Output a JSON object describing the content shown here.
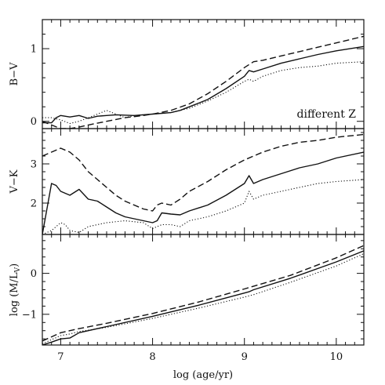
{
  "chart_data": [
    {
      "type": "line",
      "ylabel": "B−V",
      "xlim": [
        6.8,
        10.3
      ],
      "ylim": [
        -0.1,
        1.4
      ],
      "yticks": [
        0,
        1
      ],
      "yminor": [
        0.2,
        0.4,
        0.6,
        0.8,
        1.2
      ],
      "annotation": "different Z",
      "series": [
        {
          "style": "solid",
          "color": "#111111",
          "x": [
            6.8,
            6.9,
            6.95,
            7.0,
            7.1,
            7.2,
            7.3,
            7.4,
            7.5,
            7.6,
            7.8,
            8.0,
            8.2,
            8.3,
            8.4,
            8.6,
            8.8,
            9.0,
            9.05,
            9.1,
            9.2,
            9.4,
            9.6,
            9.8,
            10.0,
            10.3
          ],
          "y": [
            -0.02,
            -0.02,
            0.05,
            0.08,
            0.06,
            0.08,
            0.04,
            0.07,
            0.08,
            0.09,
            0.08,
            0.1,
            0.12,
            0.15,
            0.2,
            0.3,
            0.45,
            0.62,
            0.7,
            0.68,
            0.72,
            0.8,
            0.86,
            0.92,
            0.97,
            1.03
          ]
        },
        {
          "style": "dashed",
          "color": "#111111",
          "x": [
            6.8,
            6.9,
            7.0,
            7.1,
            7.2,
            7.3,
            7.5,
            7.7,
            7.9,
            8.0,
            8.2,
            8.4,
            8.6,
            8.8,
            9.0,
            9.1,
            9.2,
            9.4,
            9.6,
            9.8,
            10.0,
            10.3
          ],
          "y": [
            0.0,
            -0.05,
            -0.1,
            -0.1,
            -0.08,
            -0.05,
            0.0,
            0.05,
            0.08,
            0.1,
            0.15,
            0.24,
            0.38,
            0.55,
            0.74,
            0.82,
            0.84,
            0.9,
            0.96,
            1.02,
            1.08,
            1.17
          ]
        },
        {
          "style": "dotted",
          "color": "#111111",
          "x": [
            6.8,
            6.9,
            7.0,
            7.1,
            7.2,
            7.3,
            7.4,
            7.5,
            7.6,
            7.7,
            7.8,
            8.0,
            8.2,
            8.4,
            8.6,
            8.8,
            9.0,
            9.05,
            9.1,
            9.2,
            9.4,
            9.6,
            9.8,
            10.0,
            10.3
          ],
          "y": [
            0.05,
            0.05,
            0.02,
            -0.03,
            0.0,
            0.05,
            0.1,
            0.15,
            0.1,
            0.05,
            0.08,
            0.1,
            0.12,
            0.18,
            0.28,
            0.4,
            0.55,
            0.58,
            0.55,
            0.62,
            0.7,
            0.74,
            0.76,
            0.8,
            0.82
          ]
        }
      ]
    },
    {
      "type": "line",
      "ylabel": "V−K",
      "xlim": [
        6.8,
        10.3
      ],
      "ylim": [
        1.2,
        3.9
      ],
      "yticks": [
        2,
        3
      ],
      "yminor": [
        1.4,
        1.6,
        1.8,
        2.2,
        2.4,
        2.6,
        2.8,
        3.2,
        3.4,
        3.6,
        3.8
      ],
      "series": [
        {
          "style": "solid",
          "color": "#111111",
          "x": [
            6.8,
            6.9,
            6.95,
            7.0,
            7.1,
            7.2,
            7.3,
            7.4,
            7.5,
            7.6,
            7.7,
            7.8,
            7.9,
            8.0,
            8.05,
            8.1,
            8.2,
            8.3,
            8.4,
            8.6,
            8.8,
            9.0,
            9.05,
            9.1,
            9.2,
            9.4,
            9.6,
            9.8,
            10.0,
            10.3
          ],
          "y": [
            1.2,
            2.5,
            2.45,
            2.3,
            2.2,
            2.35,
            2.1,
            2.05,
            1.9,
            1.75,
            1.65,
            1.6,
            1.55,
            1.5,
            1.55,
            1.75,
            1.72,
            1.7,
            1.8,
            1.95,
            2.2,
            2.5,
            2.7,
            2.5,
            2.6,
            2.75,
            2.9,
            3.0,
            3.15,
            3.3
          ]
        },
        {
          "style": "dashed",
          "color": "#111111",
          "x": [
            6.8,
            6.9,
            7.0,
            7.1,
            7.2,
            7.3,
            7.4,
            7.5,
            7.6,
            7.7,
            7.8,
            7.9,
            8.0,
            8.05,
            8.1,
            8.2,
            8.3,
            8.4,
            8.6,
            8.8,
            9.0,
            9.1,
            9.2,
            9.4,
            9.6,
            9.8,
            10.0,
            10.3
          ],
          "y": [
            3.2,
            3.3,
            3.4,
            3.3,
            3.1,
            2.8,
            2.6,
            2.4,
            2.2,
            2.05,
            1.95,
            1.85,
            1.8,
            1.95,
            2.0,
            1.95,
            2.1,
            2.3,
            2.55,
            2.85,
            3.1,
            3.2,
            3.3,
            3.45,
            3.55,
            3.6,
            3.68,
            3.75
          ]
        },
        {
          "style": "dotted",
          "color": "#111111",
          "x": [
            6.8,
            6.9,
            7.0,
            7.05,
            7.1,
            7.2,
            7.3,
            7.5,
            7.7,
            7.9,
            8.0,
            8.05,
            8.1,
            8.2,
            8.3,
            8.4,
            8.6,
            8.8,
            9.0,
            9.05,
            9.1,
            9.2,
            9.4,
            9.6,
            9.8,
            10.0,
            10.3
          ],
          "y": [
            1.2,
            1.3,
            1.5,
            1.45,
            1.3,
            1.25,
            1.4,
            1.5,
            1.55,
            1.5,
            1.35,
            1.4,
            1.45,
            1.45,
            1.4,
            1.55,
            1.65,
            1.8,
            2.0,
            2.3,
            2.1,
            2.2,
            2.3,
            2.4,
            2.5,
            2.55,
            2.6
          ]
        }
      ]
    },
    {
      "type": "line",
      "ylabel": "log (M/L",
      "ylabel_sub": "V",
      "ylabel_close": ")",
      "xlabel": "log (age/yr)",
      "xlim": [
        6.8,
        10.3
      ],
      "ylim": [
        -1.75,
        0.95
      ],
      "yticks": [
        -1,
        0
      ],
      "yminor": [
        -1.6,
        -1.4,
        -1.2,
        -0.8,
        -0.6,
        -0.4,
        -0.2,
        0.2,
        0.4,
        0.6,
        0.8
      ],
      "xticks": [
        7,
        8,
        9,
        10
      ],
      "xminor": [
        6.8,
        6.9,
        7.1,
        7.2,
        7.3,
        7.4,
        7.5,
        7.6,
        7.7,
        7.8,
        7.9,
        8.1,
        8.2,
        8.3,
        8.4,
        8.5,
        8.6,
        8.7,
        8.8,
        8.9,
        9.1,
        9.2,
        9.3,
        9.4,
        9.5,
        9.6,
        9.7,
        9.8,
        9.9,
        10.1,
        10.2,
        10.3
      ],
      "series": [
        {
          "style": "solid",
          "color": "#111111",
          "x": [
            6.8,
            6.9,
            7.0,
            7.1,
            7.2,
            7.5,
            8.0,
            8.5,
            9.0,
            9.05,
            9.1,
            9.5,
            10.0,
            10.3
          ],
          "y": [
            -1.75,
            -1.68,
            -1.6,
            -1.58,
            -1.45,
            -1.3,
            -1.05,
            -0.78,
            -0.48,
            -0.45,
            -0.4,
            -0.12,
            0.28,
            0.55
          ]
        },
        {
          "style": "dashed",
          "color": "#111111",
          "x": [
            6.8,
            6.9,
            7.0,
            7.1,
            7.2,
            7.5,
            8.0,
            8.5,
            9.0,
            9.5,
            10.0,
            10.3
          ],
          "y": [
            -1.65,
            -1.55,
            -1.45,
            -1.4,
            -1.35,
            -1.22,
            -0.98,
            -0.7,
            -0.38,
            -0.05,
            0.38,
            0.68
          ]
        },
        {
          "style": "dotted",
          "color": "#111111",
          "x": [
            6.8,
            6.9,
            7.0,
            7.1,
            7.2,
            7.5,
            8.0,
            8.5,
            9.0,
            9.05,
            9.1,
            9.5,
            10.0,
            10.3
          ],
          "y": [
            -1.72,
            -1.62,
            -1.52,
            -1.48,
            -1.42,
            -1.32,
            -1.1,
            -0.85,
            -0.58,
            -0.55,
            -0.52,
            -0.22,
            0.18,
            0.48
          ]
        }
      ]
    }
  ]
}
